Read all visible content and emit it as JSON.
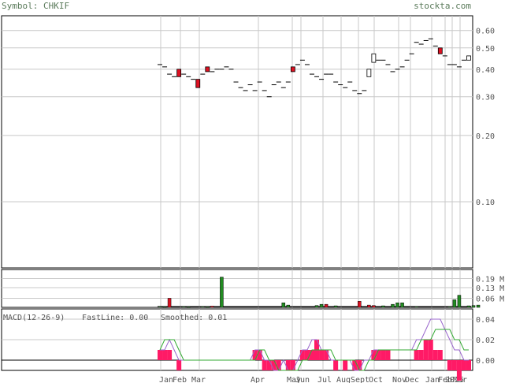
{
  "header": {
    "symbol_label": "Symbol: CHKIF",
    "site": "stockta.com"
  },
  "colors": {
    "grid": "#c8c8c8",
    "axis_text": "#555555",
    "up": "#228b22",
    "down": "#dd1122",
    "macd_bar": "#ff1a66",
    "fastline": "#9966cc",
    "smoothed": "#33aa33"
  },
  "price_axis": {
    "scale": "log",
    "ticks": [
      "0.60",
      "0.50",
      "0.40",
      "0.30",
      "0.20",
      "0.10"
    ]
  },
  "volume_axis": {
    "ticks": [
      "0.19 M",
      "0.13 M",
      "0.06 M"
    ]
  },
  "macd_panel": {
    "title": "MACD(12-26-9)",
    "fast_label": "FastLine: 0.00",
    "smooth_label": "Smoothed: 0.01",
    "ticks": [
      "0.04",
      "0.02",
      "0.00"
    ]
  },
  "x_axis": {
    "months": [
      "Jan",
      "Feb",
      "Mar",
      "Apr",
      "May",
      "Jun",
      "Jul",
      "Aug",
      "Sept",
      "Oct",
      "Nov",
      "Dec",
      "Jan",
      "Feb",
      "2025",
      "Mar"
    ]
  },
  "chart_data": {
    "type": "candlestick",
    "title": "",
    "price_ylim": [
      0.05,
      0.7
    ],
    "price": [
      {
        "o": 0.42,
        "h": 0.42,
        "l": 0.42,
        "c": 0.42
      },
      {
        "o": 0.41,
        "h": 0.41,
        "l": 0.41,
        "c": 0.41
      },
      {
        "o": 0.38,
        "h": 0.38,
        "l": 0.38,
        "c": 0.38
      },
      {
        "o": 0.37,
        "h": 0.37,
        "l": 0.37,
        "c": 0.37
      },
      {
        "o": 0.4,
        "h": 0.4,
        "l": 0.37,
        "c": 0.37
      },
      {
        "o": 0.38,
        "h": 0.38,
        "l": 0.38,
        "c": 0.38
      },
      {
        "o": 0.37,
        "h": 0.37,
        "l": 0.37,
        "c": 0.37
      },
      {
        "o": 0.36,
        "h": 0.36,
        "l": 0.36,
        "c": 0.36
      },
      {
        "o": 0.36,
        "h": 0.36,
        "l": 0.33,
        "c": 0.33
      },
      {
        "o": 0.38,
        "h": 0.38,
        "l": 0.38,
        "c": 0.38
      },
      {
        "o": 0.41,
        "h": 0.41,
        "l": 0.39,
        "c": 0.39
      },
      {
        "o": 0.39,
        "h": 0.39,
        "l": 0.39,
        "c": 0.39
      },
      {
        "o": 0.4,
        "h": 0.4,
        "l": 0.4,
        "c": 0.4
      },
      {
        "o": 0.4,
        "h": 0.4,
        "l": 0.4,
        "c": 0.4
      },
      {
        "o": 0.41,
        "h": 0.41,
        "l": 0.41,
        "c": 0.41
      },
      {
        "o": 0.4,
        "h": 0.4,
        "l": 0.4,
        "c": 0.4
      },
      {
        "o": 0.35,
        "h": 0.35,
        "l": 0.35,
        "c": 0.35
      },
      {
        "o": 0.33,
        "h": 0.33,
        "l": 0.33,
        "c": 0.33
      },
      {
        "o": 0.32,
        "h": 0.32,
        "l": 0.32,
        "c": 0.32
      },
      {
        "o": 0.34,
        "h": 0.34,
        "l": 0.34,
        "c": 0.34
      },
      {
        "o": 0.32,
        "h": 0.32,
        "l": 0.32,
        "c": 0.32
      },
      {
        "o": 0.35,
        "h": 0.35,
        "l": 0.35,
        "c": 0.35
      },
      {
        "o": 0.32,
        "h": 0.32,
        "l": 0.32,
        "c": 0.32
      },
      {
        "o": 0.3,
        "h": 0.3,
        "l": 0.3,
        "c": 0.3
      },
      {
        "o": 0.34,
        "h": 0.34,
        "l": 0.34,
        "c": 0.34
      },
      {
        "o": 0.35,
        "h": 0.35,
        "l": 0.35,
        "c": 0.35
      },
      {
        "o": 0.33,
        "h": 0.33,
        "l": 0.33,
        "c": 0.33
      },
      {
        "o": 0.35,
        "h": 0.35,
        "l": 0.35,
        "c": 0.35
      },
      {
        "o": 0.41,
        "h": 0.41,
        "l": 0.39,
        "c": 0.39
      },
      {
        "o": 0.42,
        "h": 0.42,
        "l": 0.42,
        "c": 0.42
      },
      {
        "o": 0.44,
        "h": 0.44,
        "l": 0.44,
        "c": 0.44
      },
      {
        "o": 0.42,
        "h": 0.42,
        "l": 0.42,
        "c": 0.42
      },
      {
        "o": 0.38,
        "h": 0.38,
        "l": 0.38,
        "c": 0.38
      },
      {
        "o": 0.37,
        "h": 0.37,
        "l": 0.37,
        "c": 0.37
      },
      {
        "o": 0.36,
        "h": 0.36,
        "l": 0.36,
        "c": 0.36
      },
      {
        "o": 0.38,
        "h": 0.38,
        "l": 0.38,
        "c": 0.38
      },
      {
        "o": 0.38,
        "h": 0.38,
        "l": 0.38,
        "c": 0.38
      },
      {
        "o": 0.35,
        "h": 0.35,
        "l": 0.35,
        "c": 0.35
      },
      {
        "o": 0.34,
        "h": 0.34,
        "l": 0.34,
        "c": 0.34
      },
      {
        "o": 0.33,
        "h": 0.33,
        "l": 0.33,
        "c": 0.33
      },
      {
        "o": 0.35,
        "h": 0.35,
        "l": 0.35,
        "c": 0.35
      },
      {
        "o": 0.32,
        "h": 0.32,
        "l": 0.32,
        "c": 0.32
      },
      {
        "o": 0.31,
        "h": 0.31,
        "l": 0.31,
        "c": 0.31
      },
      {
        "o": 0.32,
        "h": 0.32,
        "l": 0.32,
        "c": 0.32
      },
      {
        "o": 0.37,
        "h": 0.4,
        "l": 0.37,
        "c": 0.4
      },
      {
        "o": 0.43,
        "h": 0.47,
        "l": 0.43,
        "c": 0.47
      },
      {
        "o": 0.44,
        "h": 0.44,
        "l": 0.44,
        "c": 0.44
      },
      {
        "o": 0.44,
        "h": 0.44,
        "l": 0.44,
        "c": 0.44
      },
      {
        "o": 0.42,
        "h": 0.42,
        "l": 0.42,
        "c": 0.42
      },
      {
        "o": 0.39,
        "h": 0.39,
        "l": 0.39,
        "c": 0.39
      },
      {
        "o": 0.4,
        "h": 0.4,
        "l": 0.4,
        "c": 0.4
      },
      {
        "o": 0.41,
        "h": 0.41,
        "l": 0.41,
        "c": 0.41
      },
      {
        "o": 0.44,
        "h": 0.44,
        "l": 0.44,
        "c": 0.44
      },
      {
        "o": 0.47,
        "h": 0.47,
        "l": 0.47,
        "c": 0.47
      },
      {
        "o": 0.53,
        "h": 0.53,
        "l": 0.53,
        "c": 0.53
      },
      {
        "o": 0.52,
        "h": 0.52,
        "l": 0.52,
        "c": 0.52
      },
      {
        "o": 0.54,
        "h": 0.54,
        "l": 0.54,
        "c": 0.54
      },
      {
        "o": 0.55,
        "h": 0.55,
        "l": 0.55,
        "c": 0.55
      },
      {
        "o": 0.51,
        "h": 0.51,
        "l": 0.51,
        "c": 0.51
      },
      {
        "o": 0.5,
        "h": 0.5,
        "l": 0.47,
        "c": 0.47
      },
      {
        "o": 0.46,
        "h": 0.46,
        "l": 0.46,
        "c": 0.46
      },
      {
        "o": 0.42,
        "h": 0.42,
        "l": 0.42,
        "c": 0.42
      },
      {
        "o": 0.42,
        "h": 0.42,
        "l": 0.42,
        "c": 0.42
      },
      {
        "o": 0.41,
        "h": 0.41,
        "l": 0.41,
        "c": 0.41
      },
      {
        "o": 0.44,
        "h": 0.44,
        "l": 0.44,
        "c": 0.44
      },
      {
        "o": 0.44,
        "h": 0.46,
        "l": 0.44,
        "c": 0.46
      }
    ],
    "volume_ylim": [
      0,
      0.25
    ],
    "volume": [
      {
        "v": 0.005,
        "dir": "up"
      },
      {
        "v": 0.003,
        "dir": "up"
      },
      {
        "v": 0.06,
        "dir": "down"
      },
      {
        "v": 0.0,
        "dir": "up"
      },
      {
        "v": 0.0,
        "dir": "up"
      },
      {
        "v": 0.005,
        "dir": "up"
      },
      {
        "v": 0.003,
        "dir": "up"
      },
      {
        "v": 0.0,
        "dir": "up"
      },
      {
        "v": 0.0,
        "dir": "up"
      },
      {
        "v": 0.004,
        "dir": "up"
      },
      {
        "v": 0.003,
        "dir": "up"
      },
      {
        "v": 0.008,
        "dir": "down"
      },
      {
        "v": 0.0,
        "dir": "up"
      },
      {
        "v": 0.2,
        "dir": "up"
      },
      {
        "v": 0.0,
        "dir": "up"
      },
      {
        "v": 0.0,
        "dir": "up"
      },
      {
        "v": 0.0,
        "dir": "up"
      },
      {
        "v": 0.0,
        "dir": "up"
      },
      {
        "v": 0.0,
        "dir": "up"
      },
      {
        "v": 0.0,
        "dir": "up"
      },
      {
        "v": 0.0,
        "dir": "up"
      },
      {
        "v": 0.0,
        "dir": "up"
      },
      {
        "v": 0.0,
        "dir": "up"
      },
      {
        "v": 0.0,
        "dir": "up"
      },
      {
        "v": 0.0,
        "dir": "up"
      },
      {
        "v": 0.0,
        "dir": "up"
      },
      {
        "v": 0.03,
        "dir": "up"
      },
      {
        "v": 0.015,
        "dir": "up"
      },
      {
        "v": 0.0,
        "dir": "up"
      },
      {
        "v": 0.0,
        "dir": "up"
      },
      {
        "v": 0.0,
        "dir": "up"
      },
      {
        "v": 0.0,
        "dir": "up"
      },
      {
        "v": 0.0,
        "dir": "up"
      },
      {
        "v": 0.012,
        "dir": "up"
      },
      {
        "v": 0.02,
        "dir": "up"
      },
      {
        "v": 0.02,
        "dir": "down"
      },
      {
        "v": 0.0,
        "dir": "up"
      },
      {
        "v": 0.01,
        "dir": "up"
      },
      {
        "v": 0.0,
        "dir": "up"
      },
      {
        "v": 0.0,
        "dir": "up"
      },
      {
        "v": 0.0,
        "dir": "up"
      },
      {
        "v": 0.0,
        "dir": "up"
      },
      {
        "v": 0.04,
        "dir": "down"
      },
      {
        "v": 0.0,
        "dir": "up"
      },
      {
        "v": 0.015,
        "dir": "down"
      },
      {
        "v": 0.012,
        "dir": "down"
      },
      {
        "v": 0.0,
        "dir": "up"
      },
      {
        "v": 0.01,
        "dir": "up"
      },
      {
        "v": 0.0,
        "dir": "up"
      },
      {
        "v": 0.02,
        "dir": "up"
      },
      {
        "v": 0.03,
        "dir": "up"
      },
      {
        "v": 0.03,
        "dir": "up"
      },
      {
        "v": 0.0,
        "dir": "up"
      },
      {
        "v": 0.0,
        "dir": "up"
      },
      {
        "v": 0.005,
        "dir": "up"
      },
      {
        "v": 0.0,
        "dir": "up"
      },
      {
        "v": 0.0,
        "dir": "up"
      },
      {
        "v": 0.0,
        "dir": "up"
      },
      {
        "v": 0.0,
        "dir": "up"
      },
      {
        "v": 0.0,
        "dir": "up"
      },
      {
        "v": 0.0,
        "dir": "up"
      },
      {
        "v": 0.005,
        "dir": "up"
      },
      {
        "v": 0.05,
        "dir": "up"
      },
      {
        "v": 0.08,
        "dir": "up"
      },
      {
        "v": 0.0,
        "dir": "up"
      },
      {
        "v": 0.01,
        "dir": "up"
      },
      {
        "v": 0.012,
        "dir": "up"
      },
      {
        "v": 0.015,
        "dir": "up"
      }
    ],
    "macd_ylim": [
      -0.01,
      0.05
    ],
    "macd_hist": [
      0.01,
      0.01,
      0.01,
      0.0,
      -0.01,
      0.0,
      0.0,
      0.0,
      0.0,
      0.0,
      0.0,
      0.0,
      0.0,
      0.0,
      0.0,
      0.0,
      0.0,
      0.0,
      0.0,
      0.0,
      0.01,
      0.01,
      -0.01,
      -0.01,
      -0.01,
      -0.01,
      0.0,
      -0.01,
      -0.01,
      0.0,
      0.01,
      0.01,
      0.01,
      0.02,
      0.01,
      0.01,
      0.0,
      -0.01,
      0.0,
      -0.01,
      0.0,
      -0.01,
      -0.01,
      0.0,
      0.0,
      0.01,
      0.01,
      0.01,
      0.01,
      0.0,
      0.0,
      0.0,
      0.0,
      0.0,
      0.01,
      0.01,
      0.02,
      0.02,
      0.01,
      0.01,
      0.0,
      -0.01,
      -0.01,
      -0.02,
      -0.01,
      -0.01
    ],
    "macd_fast": [
      0.01,
      0.01,
      0.02,
      0.01,
      0.0,
      0.0,
      0.0,
      0.0,
      0.0,
      0.0,
      0.0,
      0.0,
      0.0,
      0.0,
      0.0,
      0.0,
      0.0,
      0.0,
      0.0,
      0.0,
      0.01,
      0.01,
      0.0,
      0.0,
      -0.01,
      -0.01,
      0.0,
      -0.01,
      -0.01,
      0.0,
      0.01,
      0.01,
      0.02,
      0.02,
      0.01,
      0.01,
      0.0,
      0.0,
      0.0,
      0.0,
      0.0,
      -0.01,
      -0.01,
      0.0,
      0.0,
      0.01,
      0.01,
      0.01,
      0.01,
      0.01,
      0.01,
      0.01,
      0.01,
      0.01,
      0.02,
      0.02,
      0.03,
      0.04,
      0.04,
      0.04,
      0.03,
      0.02,
      0.01,
      0.01,
      0.0,
      0.0
    ],
    "macd_smooth": [
      0.01,
      0.02,
      0.02,
      0.02,
      0.01,
      0.0,
      0.0,
      0.0,
      0.0,
      0.0,
      0.0,
      0.0,
      0.0,
      0.0,
      0.0,
      0.0,
      0.0,
      0.0,
      0.0,
      0.0,
      0.0,
      0.01,
      0.01,
      0.0,
      0.0,
      -0.01,
      -0.01,
      -0.01,
      -0.01,
      -0.01,
      0.0,
      0.0,
      0.01,
      0.01,
      0.01,
      0.01,
      0.01,
      0.0,
      0.0,
      0.0,
      0.0,
      0.0,
      -0.01,
      -0.01,
      0.0,
      0.0,
      0.01,
      0.01,
      0.01,
      0.01,
      0.01,
      0.01,
      0.01,
      0.01,
      0.01,
      0.02,
      0.02,
      0.02,
      0.03,
      0.03,
      0.03,
      0.03,
      0.02,
      0.02,
      0.01,
      0.01
    ]
  }
}
